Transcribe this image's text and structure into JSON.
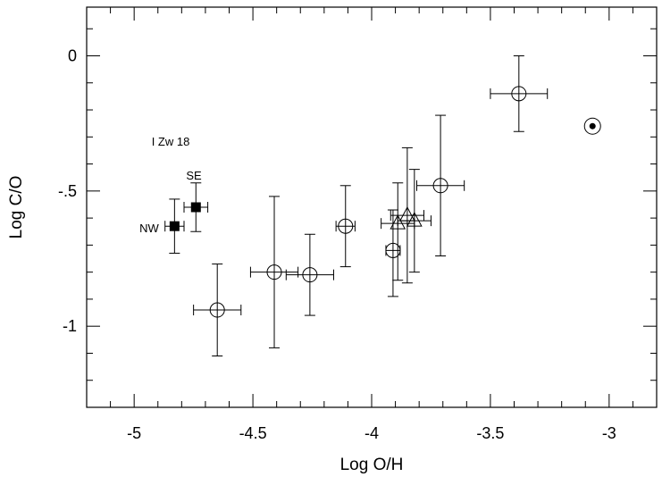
{
  "chart_data": {
    "type": "scatter",
    "title": "",
    "xlabel": "Log O/H",
    "ylabel": "Log C/O",
    "xlim": [
      -5.2,
      -2.8
    ],
    "ylim": [
      -1.3,
      0.18
    ],
    "xticks": [
      -5,
      -4.5,
      -4,
      -3.5,
      -3
    ],
    "xtick_labels": [
      "-5",
      "-4.5",
      "-4",
      "-3.5",
      "-3"
    ],
    "yticks": [
      0,
      -0.5,
      -1
    ],
    "ytick_labels": [
      "0",
      "-.5",
      "-1"
    ],
    "grid": false,
    "annotations": {
      "object": "I Zw 18",
      "se": "SE",
      "nw": "NW"
    },
    "series": [
      {
        "marker": "open-circle",
        "points": [
          {
            "x": -4.65,
            "y": -0.94,
            "xerr": 0.1,
            "yerr_low": 0.17,
            "yerr_high": 0.17
          },
          {
            "x": -4.41,
            "y": -0.8,
            "xerr": 0.1,
            "yerr_low": 0.28,
            "yerr_high": 0.28
          },
          {
            "x": -4.26,
            "y": -0.81,
            "xerr": 0.1,
            "yerr_low": 0.15,
            "yerr_high": 0.15
          },
          {
            "x": -4.11,
            "y": -0.63,
            "xerr": 0.04,
            "yerr_low": 0.15,
            "yerr_high": 0.15
          },
          {
            "x": -3.91,
            "y": -0.72,
            "xerr": 0.03,
            "yerr_low": 0.17,
            "yerr_high": 0.15
          },
          {
            "x": -3.71,
            "y": -0.48,
            "xerr": 0.1,
            "yerr_low": 0.26,
            "yerr_high": 0.26
          },
          {
            "x": -3.38,
            "y": -0.14,
            "xerr": 0.12,
            "yerr_low": 0.14,
            "yerr_high": 0.14
          }
        ]
      },
      {
        "marker": "open-triangle",
        "points": [
          {
            "x": -3.89,
            "y": -0.62,
            "xerr": 0.07,
            "yerr_low": 0.21,
            "yerr_high": 0.15
          },
          {
            "x": -3.85,
            "y": -0.59,
            "xerr": 0.07,
            "yerr_low": 0.25,
            "yerr_high": 0.25
          },
          {
            "x": -3.82,
            "y": -0.61,
            "xerr": 0.07,
            "yerr_low": 0.19,
            "yerr_high": 0.19
          }
        ]
      },
      {
        "marker": "filled-square",
        "points": [
          {
            "x": -4.83,
            "y": -0.63,
            "xerr": 0.04,
            "yerr_low": 0.1,
            "yerr_high": 0.1,
            "label": "NW"
          },
          {
            "x": -4.74,
            "y": -0.56,
            "xerr": 0.05,
            "yerr_low": 0.09,
            "yerr_high": 0.09,
            "label": "SE"
          }
        ]
      },
      {
        "marker": "solar-symbol",
        "points": [
          {
            "x": -3.07,
            "y": -0.26
          }
        ]
      }
    ]
  }
}
